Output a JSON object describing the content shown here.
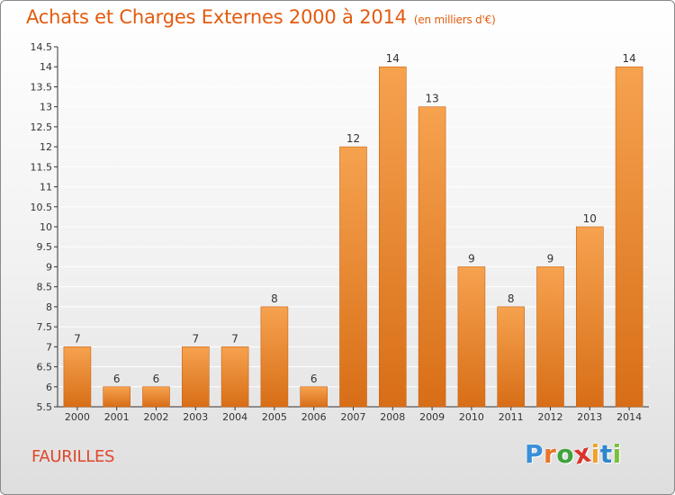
{
  "header": {
    "title": "Achats et Charges Externes 2000 à 2014",
    "subtitle": "(en milliers d'€)"
  },
  "footer": {
    "commune": "FAURILLES",
    "logo": [
      "P",
      "r",
      "o",
      "x",
      "i",
      "t",
      "i"
    ],
    "logo_colors": [
      "#3a8fd9",
      "#e8752a",
      "#3fa33c",
      "#d9342b",
      "#f0a22a",
      "#2f86c9",
      "#7bbf3a"
    ]
  },
  "colors": {
    "bar_top": "#f6a24f",
    "bar_bottom": "#d86e17",
    "bar_edge": "#c96414",
    "title": "#e35b0f",
    "grid": "#ffffff",
    "axis": "#333333"
  },
  "chart_data": {
    "type": "bar",
    "categories": [
      "2000",
      "2001",
      "2002",
      "2003",
      "2004",
      "2005",
      "2006",
      "2007",
      "2008",
      "2009",
      "2010",
      "2011",
      "2012",
      "2013",
      "2014"
    ],
    "values": [
      7,
      6,
      6,
      7,
      7,
      8,
      6,
      12,
      14,
      13,
      9,
      8,
      9,
      10,
      14
    ],
    "labels": [
      "7",
      "6",
      "6",
      "7",
      "7",
      "8",
      "6",
      "12",
      "14",
      "13",
      "9",
      "8",
      "9",
      "10",
      "14"
    ],
    "ylim": [
      5.5,
      14.5
    ],
    "yticks": [
      5.5,
      6,
      6.5,
      7,
      7.5,
      8,
      8.5,
      9,
      9.5,
      10,
      10.5,
      11,
      11.5,
      12,
      12.5,
      13,
      13.5,
      14,
      14.5
    ],
    "ytick_labels": [
      "5.5",
      "6",
      "6.5",
      "7",
      "7.5",
      "8",
      "8.5",
      "9",
      "9.5",
      "10",
      "10.5",
      "11",
      "11.5",
      "12",
      "12.5",
      "13",
      "13.5",
      "14",
      "14.5"
    ],
    "grid": true,
    "legend": "none"
  }
}
